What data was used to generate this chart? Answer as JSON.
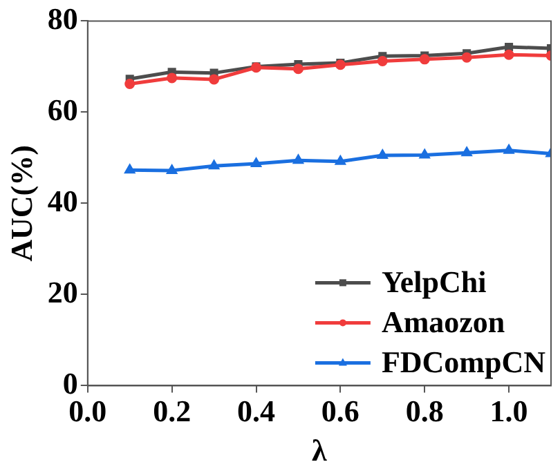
{
  "chart_data": {
    "type": "line",
    "xlabel": "λ",
    "ylabel": "AUC(%)",
    "x": [
      0.1,
      0.2,
      0.3,
      0.4,
      0.5,
      0.6,
      0.7,
      0.8,
      0.9,
      1.0,
      1.1
    ],
    "xlim": [
      0,
      1.1
    ],
    "xticks": [
      {
        "value": 0.0,
        "label": "0.0"
      },
      {
        "value": 0.2,
        "label": "0.2"
      },
      {
        "value": 0.4,
        "label": "0.4"
      },
      {
        "value": 0.6,
        "label": "0.6"
      },
      {
        "value": 0.8,
        "label": "0.8"
      },
      {
        "value": 1.0,
        "label": "1.0"
      }
    ],
    "ylim": [
      0,
      80
    ],
    "yticks": [
      0,
      20,
      40,
      60,
      80
    ],
    "grid": false,
    "legend": "bottom right",
    "line_style": "solid",
    "series": [
      {
        "name": "YelpChi",
        "color": "#4d4d4d",
        "marker": "square",
        "values": [
          67.3,
          68.8,
          68.6,
          70.0,
          70.5,
          70.8,
          72.3,
          72.4,
          72.9,
          74.3,
          74.0
        ]
      },
      {
        "name": "Amaozon",
        "color": "#f03c3c",
        "marker": "circle",
        "values": [
          66.2,
          67.5,
          67.2,
          69.8,
          69.5,
          70.4,
          71.2,
          71.6,
          72.0,
          72.6,
          72.4
        ]
      },
      {
        "name": "FDCompCN",
        "color": "#1a6fe0",
        "marker": "triangle",
        "values": [
          47.3,
          47.2,
          48.2,
          48.7,
          49.4,
          49.2,
          50.5,
          50.6,
          51.1,
          51.6,
          50.9
        ]
      }
    ]
  }
}
